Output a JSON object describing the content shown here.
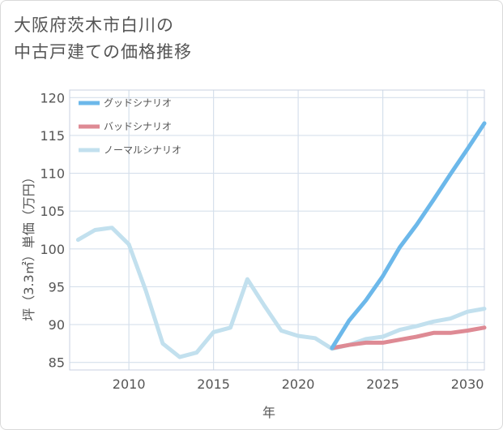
{
  "title_lines": [
    "大阪府茨木市白川の",
    "中古戸建ての価格推移"
  ],
  "chart_data": {
    "type": "line",
    "xlabel": "年",
    "ylabel": "坪（3.3㎡）単価（万円）",
    "xlim": [
      2006.5,
      2031
    ],
    "ylim": [
      84,
      121
    ],
    "xticks": [
      2010,
      2015,
      2020,
      2025,
      2030
    ],
    "yticks": [
      85,
      90,
      95,
      100,
      105,
      110,
      115,
      120
    ],
    "grid": true,
    "legend_position": "top-left",
    "series": [
      {
        "name": "グッドシナリオ",
        "color": "#6cb8ea",
        "x": [
          2022,
          2023,
          2024,
          2025,
          2026,
          2027,
          2028,
          2029,
          2030,
          2031
        ],
        "values": [
          86.9,
          90.5,
          93.2,
          96.4,
          100.2,
          103.2,
          106.5,
          109.9,
          113.2,
          116.6
        ]
      },
      {
        "name": "バッドシナリオ",
        "color": "#de8a94",
        "x": [
          2022,
          2023,
          2024,
          2025,
          2026,
          2027,
          2028,
          2029,
          2030,
          2031
        ],
        "values": [
          86.9,
          87.3,
          87.6,
          87.6,
          88.0,
          88.4,
          88.9,
          88.9,
          89.2,
          89.6
        ]
      },
      {
        "name": "ノーマルシナリオ",
        "color": "#c2e0ee",
        "x": [
          2007,
          2008,
          2009,
          2010,
          2011,
          2012,
          2013,
          2014,
          2015,
          2016,
          2017,
          2018,
          2019,
          2020,
          2021,
          2022,
          2023,
          2024,
          2025,
          2026,
          2027,
          2028,
          2029,
          2030,
          2031
        ],
        "values": [
          101.2,
          102.5,
          102.8,
          100.6,
          94.5,
          87.5,
          85.7,
          86.3,
          89.0,
          89.6,
          96.0,
          92.5,
          89.2,
          88.5,
          88.2,
          86.8,
          87.3,
          88.1,
          88.4,
          89.3,
          89.8,
          90.4,
          90.8,
          91.7,
          92.1
        ]
      }
    ]
  }
}
